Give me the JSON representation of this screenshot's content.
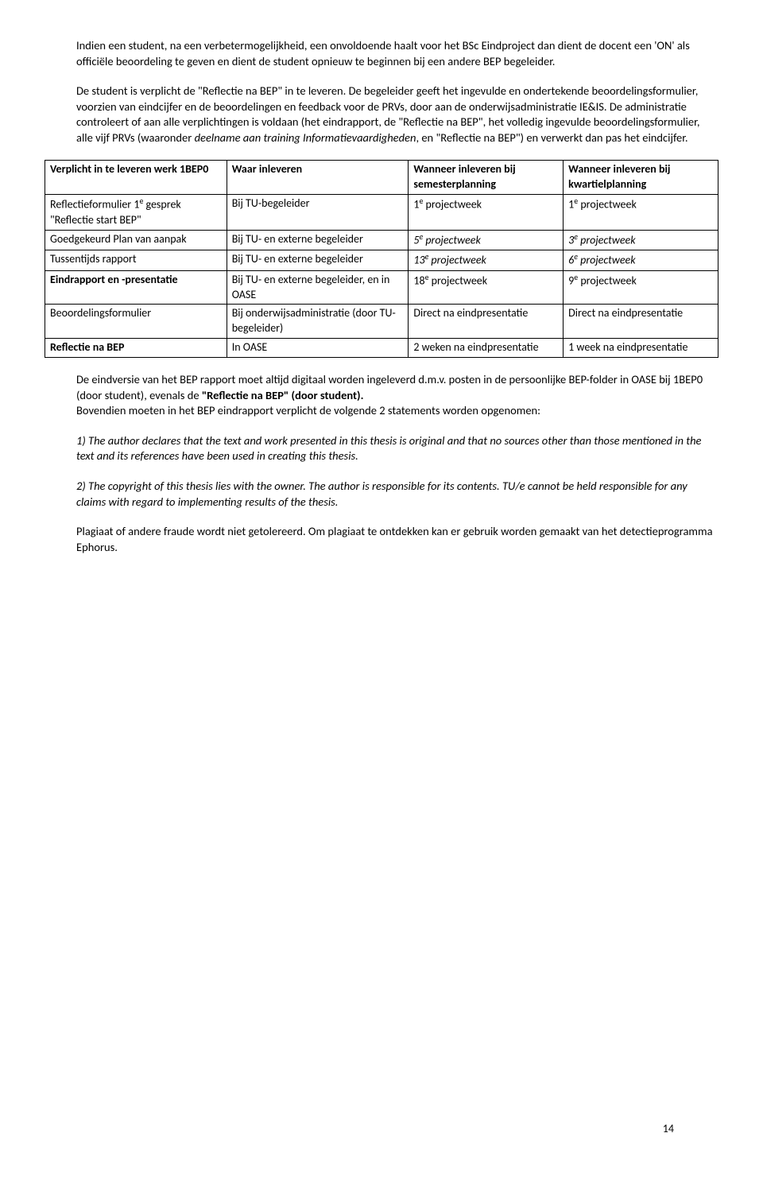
{
  "page_number": "14",
  "paras": {
    "p1_a": "Indien een student, na een verbetermogelijkheid, een onvoldoende haalt voor het BSc Eindproject dan dient de docent een 'ON' als officiële beoordeling te geven en dient de student opnieuw te beginnen bij een andere BEP begeleider.",
    "p2_a": "De student is verplicht de \"Reflectie na BEP\" in te leveren. De begeleider geeft het ingevulde en ondertekende beoordelingsformulier, voorzien van eindcijfer en de beoordelingen en feedback voor de PRVs, door aan de onderwijsadministratie IE&IS. De administratie controleert of aan alle verplichtingen is voldaan (het eindrapport, de \"Reflectie na BEP\", het volledig ingevulde beoordelingsformulier, alle vijf PRVs (waaronder ",
    "p2_italic": "deelname aan training Informatievaardigheden",
    "p2_b": ", en \"Reflectie na BEP\") en verwerkt dan pas het eindcijfer.",
    "p3_a": "De eindversie van het BEP rapport moet altijd digitaal worden ingeleverd d.m.v. posten in de persoonlijke BEP-folder in OASE bij 1BEP0 (door student), evenals de ",
    "p3_bold": "\"Reflectie na BEP\" (door student).",
    "p3_b": "Bovendien moeten in het BEP eindrapport verplicht de volgende 2 statements worden opgenomen:",
    "p4": "1) The author declares that the text and work presented in this thesis is original and that no sources other than those mentioned in the text and its references have been used in creating this thesis.",
    "p5_a": "2) The copyright of this thesis lies with the owner. The author is responsible for its contents.",
    "p5_b": " TU/e cannot be held responsible for any claims with regard to implementing results of the thesis.",
    "p6": "Plagiaat of andere fraude wordt niet getolereerd. Om plagiaat te ontdekken kan er gebruik worden gemaakt van het detectieprogramma Ephorus."
  },
  "table": {
    "headers": [
      "Verplicht in te leveren werk 1BEP0",
      "Waar inleveren",
      "Wanneer inleveren bij semesterplanning",
      "Wanneer inleveren bij kwartielplanning"
    ],
    "rows": [
      {
        "c0_a": "Reflectieformulier 1",
        "c0_sup": "e",
        "c0_b": " gesprek \"Reflectie start BEP\"",
        "c1": "Bij TU-begeleider",
        "c2_a": "1",
        "c2_sup": "e",
        "c2_b": " projectweek",
        "c2_italic": false,
        "c3_a": "1",
        "c3_sup": "e",
        "c3_b": " projectweek",
        "c3_italic": false
      },
      {
        "c0_a": "Goedgekeurd Plan van aanpak",
        "c0_sup": "",
        "c0_b": "",
        "c1": "Bij TU- en externe begeleider",
        "c2_a": "5",
        "c2_sup": "e",
        "c2_b": " projectweek",
        "c2_italic": true,
        "c3_a": "3",
        "c3_sup": "e",
        "c3_b": " projectweek",
        "c3_italic": true
      },
      {
        "c0_a": "Tussentijds rapport",
        "c0_sup": "",
        "c0_b": "",
        "c1": "Bij TU- en externe begeleider",
        "c2_a": "13",
        "c2_sup": "e",
        "c2_b": " projectweek",
        "c2_italic": true,
        "c3_a": "6",
        "c3_sup": "e",
        "c3_b": " projectweek",
        "c3_italic": true
      },
      {
        "c0_a": "Eindrapport en -presentatie",
        "c0_sup": "",
        "c0_b": "",
        "c0_bold": true,
        "c1": "Bij TU- en externe begeleider, en in OASE",
        "c2_a": "18",
        "c2_sup": "e",
        "c2_b": " projectweek",
        "c2_italic": false,
        "c3_a": "9",
        "c3_sup": "e",
        "c3_b": " projectweek",
        "c3_italic": false
      },
      {
        "c0_a": "Beoordelingsformulier",
        "c0_sup": "",
        "c0_b": "",
        "c1": "Bij onderwijsadministratie (door TU-begeleider)",
        "c2_a": "Direct na eindpresentatie",
        "c2_sup": "",
        "c2_b": "",
        "c2_italic": false,
        "c3_a": "Direct na eindpresentatie",
        "c3_sup": "",
        "c3_b": "",
        "c3_italic": false
      },
      {
        "c0_a": "Reflectie na BEP",
        "c0_sup": "",
        "c0_b": "",
        "c0_bold": true,
        "c1": "In OASE",
        "c2_a": "2 weken na eindpresentatie",
        "c2_sup": "",
        "c2_b": "",
        "c2_italic": false,
        "c3_a": "1 week na eindpresentatie",
        "c3_sup": "",
        "c3_b": "",
        "c3_italic": false
      }
    ]
  }
}
